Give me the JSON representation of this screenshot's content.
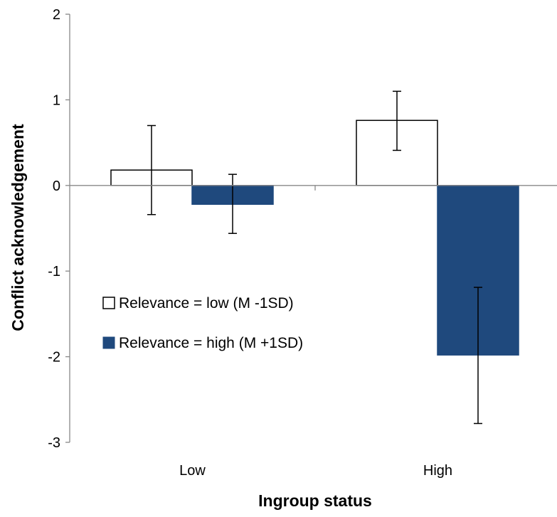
{
  "chart_data": {
    "type": "bar",
    "title": "",
    "xlabel": "Ingroup status",
    "ylabel": "Conflict acknowledgement",
    "categories": [
      "Low",
      "High"
    ],
    "ylim": [
      -3,
      2
    ],
    "yticks": [
      -3,
      -2,
      -1,
      0,
      1,
      2
    ],
    "grid": false,
    "legend": "inside-left",
    "series": [
      {
        "name": "Relevance = low (M -1SD)",
        "color": "#ffffff",
        "border": "#000000",
        "values": [
          0.18,
          0.76
        ],
        "err_low": [
          -0.34,
          0.41
        ],
        "err_high": [
          0.7,
          1.1
        ]
      },
      {
        "name": "Relevance = high (M +1SD)",
        "color": "#1f497d",
        "border": "#1f497d",
        "values": [
          -0.22,
          -1.98
        ],
        "err_low": [
          -0.56,
          -2.78
        ],
        "err_high": [
          0.13,
          -1.19
        ]
      }
    ]
  }
}
